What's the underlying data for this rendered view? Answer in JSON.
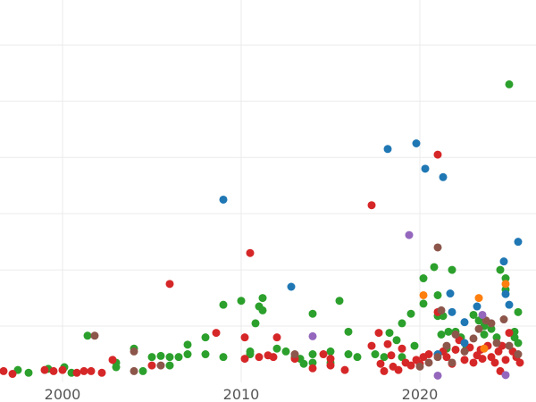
{
  "chart_data": {
    "type": "scatter",
    "title": "",
    "xlabel": "",
    "ylabel": "",
    "xlim": [
      1996.5,
      2026.5
    ],
    "ylim": [
      0,
      6.8
    ],
    "x_ticks": [
      {
        "value": 2000,
        "label": "2000"
      },
      {
        "value": 2010,
        "label": "2010"
      },
      {
        "value": 2020,
        "label": "2020"
      }
    ],
    "y_gridlines": [
      1,
      2,
      3,
      4,
      5,
      6
    ],
    "x_gridlines": [
      2000,
      2010,
      2020
    ],
    "grid": true,
    "legend": "none",
    "colors": {
      "green": "#2ca02c",
      "red": "#d62728",
      "blue": "#1f77b4",
      "brown": "#8c564b",
      "orange": "#ff7f0e",
      "purple": "#9467bd"
    },
    "series": [
      {
        "color": "#2ca02c",
        "points": [
          [
            1997.5,
            0.22
          ],
          [
            1998.1,
            0.17
          ],
          [
            1999.2,
            0.24
          ],
          [
            2000.1,
            0.27
          ],
          [
            2000.5,
            0.17
          ],
          [
            2001.4,
            0.83
          ],
          [
            2003.0,
            0.35
          ],
          [
            2003.0,
            0.27
          ],
          [
            2004.0,
            0.6
          ],
          [
            2004.5,
            0.2
          ],
          [
            2005.0,
            0.45
          ],
          [
            2005.5,
            0.47
          ],
          [
            2006.0,
            0.45
          ],
          [
            2006.0,
            0.3
          ],
          [
            2006.5,
            0.45
          ],
          [
            2007.0,
            0.5
          ],
          [
            2007.0,
            0.67
          ],
          [
            2008.0,
            0.5
          ],
          [
            2008.0,
            0.8
          ],
          [
            2009.0,
            1.38
          ],
          [
            2009.0,
            0.45
          ],
          [
            2010.0,
            1.45
          ],
          [
            2010.5,
            0.55
          ],
          [
            2010.5,
            0.5
          ],
          [
            2011.0,
            1.35
          ],
          [
            2011.2,
            1.5
          ],
          [
            2011.2,
            1.28
          ],
          [
            2010.8,
            1.05
          ],
          [
            2012.0,
            0.6
          ],
          [
            2012.5,
            0.55
          ],
          [
            2013.0,
            0.45
          ],
          [
            2013.3,
            0.42
          ],
          [
            2013.5,
            0.33
          ],
          [
            2014.0,
            0.35
          ],
          [
            2014.0,
            0.5
          ],
          [
            2014.0,
            1.22
          ],
          [
            2015.0,
            0.55
          ],
          [
            2015.0,
            0.35
          ],
          [
            2015.5,
            1.45
          ],
          [
            2016.0,
            0.5
          ],
          [
            2016.0,
            0.9
          ],
          [
            2016.5,
            0.45
          ],
          [
            2017.5,
            0.5
          ],
          [
            2018.0,
            0.45
          ],
          [
            2018.3,
            0.88
          ],
          [
            2018.7,
            0.75
          ],
          [
            2019.0,
            1.05
          ],
          [
            2019.0,
            0.45
          ],
          [
            2019.5,
            1.22
          ],
          [
            2019.7,
            0.65
          ],
          [
            2020.2,
            1.4
          ],
          [
            2020.2,
            1.85
          ],
          [
            2020.8,
            2.05
          ],
          [
            2021.0,
            1.55
          ],
          [
            2021.0,
            1.18
          ],
          [
            2021.2,
            0.85
          ],
          [
            2021.3,
            1.18
          ],
          [
            2021.5,
            0.6
          ],
          [
            2021.8,
            2.0
          ],
          [
            2022.0,
            0.9
          ],
          [
            2022.3,
            0.8
          ],
          [
            2022.6,
            0.6
          ],
          [
            2023.0,
            1.2
          ],
          [
            2023.3,
            1.1
          ],
          [
            2023.6,
            0.85
          ],
          [
            2023.6,
            1.0
          ],
          [
            2024.0,
            0.95
          ],
          [
            2024.3,
            0.8
          ],
          [
            2024.5,
            2.0
          ],
          [
            2024.8,
            1.65
          ],
          [
            2024.8,
            1.85
          ],
          [
            2025.0,
            5.3
          ],
          [
            2025.3,
            0.9
          ],
          [
            2025.5,
            1.25
          ],
          [
            2025.5,
            0.7
          ],
          [
            2025.3,
            0.8
          ],
          [
            2021.6,
            0.9
          ]
        ]
      },
      {
        "color": "#d62728",
        "points": [
          [
            1996.7,
            0.2
          ],
          [
            1997.2,
            0.15
          ],
          [
            1999.0,
            0.22
          ],
          [
            1999.5,
            0.2
          ],
          [
            2000.0,
            0.22
          ],
          [
            2000.8,
            0.17
          ],
          [
            2001.2,
            0.2
          ],
          [
            2001.6,
            0.2
          ],
          [
            2002.2,
            0.17
          ],
          [
            2002.8,
            0.4
          ],
          [
            2005.0,
            0.3
          ],
          [
            2006.0,
            1.75
          ],
          [
            2008.6,
            0.88
          ],
          [
            2010.2,
            0.8
          ],
          [
            2010.2,
            0.42
          ],
          [
            2010.5,
            2.3
          ],
          [
            2011.0,
            0.45
          ],
          [
            2011.5,
            0.48
          ],
          [
            2011.8,
            0.45
          ],
          [
            2012.0,
            0.8
          ],
          [
            2013.0,
            0.42
          ],
          [
            2014.0,
            0.25
          ],
          [
            2014.6,
            0.5
          ],
          [
            2015.0,
            0.42
          ],
          [
            2015.0,
            0.3
          ],
          [
            2015.8,
            0.22
          ],
          [
            2017.3,
            3.15
          ],
          [
            2017.3,
            0.65
          ],
          [
            2017.7,
            0.88
          ],
          [
            2017.8,
            0.33
          ],
          [
            2018.0,
            0.2
          ],
          [
            2018.2,
            0.68
          ],
          [
            2018.4,
            0.48
          ],
          [
            2018.5,
            0.28
          ],
          [
            2018.8,
            0.22
          ],
          [
            2019.0,
            0.6
          ],
          [
            2019.2,
            0.35
          ],
          [
            2019.5,
            0.3
          ],
          [
            2019.8,
            0.4
          ],
          [
            2020.0,
            0.33
          ],
          [
            2020.2,
            0.45
          ],
          [
            2020.5,
            0.5
          ],
          [
            2021.0,
            4.05
          ],
          [
            2021.0,
            1.25
          ],
          [
            2021.3,
            0.55
          ],
          [
            2021.5,
            0.45
          ],
          [
            2021.8,
            0.33
          ],
          [
            2022.0,
            0.58
          ],
          [
            2022.2,
            0.75
          ],
          [
            2022.5,
            0.4
          ],
          [
            2022.8,
            0.62
          ],
          [
            2023.0,
            0.35
          ],
          [
            2023.2,
            0.48
          ],
          [
            2023.5,
            0.42
          ],
          [
            2023.8,
            0.65
          ],
          [
            2024.0,
            0.45
          ],
          [
            2024.2,
            0.35
          ],
          [
            2024.4,
            0.55
          ],
          [
            2024.6,
            0.65
          ],
          [
            2024.8,
            0.4
          ],
          [
            2025.0,
            0.88
          ],
          [
            2025.2,
            0.55
          ],
          [
            2025.4,
            0.45
          ],
          [
            2025.6,
            0.35
          ],
          [
            2024.5,
            0.2
          ],
          [
            2023.4,
            0.58
          ]
        ]
      },
      {
        "color": "#1f77b4",
        "points": [
          [
            2009.0,
            3.25
          ],
          [
            2012.8,
            1.7
          ],
          [
            2018.2,
            4.15
          ],
          [
            2019.8,
            4.25
          ],
          [
            2020.3,
            3.8
          ],
          [
            2021.3,
            3.65
          ],
          [
            2021.7,
            1.58
          ],
          [
            2021.8,
            1.25
          ],
          [
            2022.5,
            1.07
          ],
          [
            2023.2,
            1.35
          ],
          [
            2024.8,
            1.57
          ],
          [
            2025.0,
            1.38
          ],
          [
            2024.7,
            2.15
          ],
          [
            2025.5,
            2.5
          ],
          [
            2021.0,
            0.5
          ],
          [
            2022.5,
            0.7
          ]
        ]
      },
      {
        "color": "#8c564b",
        "points": [
          [
            2001.8,
            0.83
          ],
          [
            2004.0,
            0.2
          ],
          [
            2004.0,
            0.55
          ],
          [
            2005.5,
            0.3
          ],
          [
            2013.0,
            0.5
          ],
          [
            2020.0,
            0.28
          ],
          [
            2020.5,
            0.35
          ],
          [
            2021.0,
            0.45
          ],
          [
            2021.0,
            2.4
          ],
          [
            2021.2,
            1.28
          ],
          [
            2021.5,
            0.65
          ],
          [
            2022.0,
            0.85
          ],
          [
            2022.5,
            0.55
          ],
          [
            2023.0,
            0.78
          ],
          [
            2023.3,
            0.95
          ],
          [
            2023.7,
            1.1
          ],
          [
            2024.0,
            1.05
          ],
          [
            2024.3,
            0.7
          ],
          [
            2024.7,
            1.12
          ],
          [
            2025.0,
            0.65
          ],
          [
            2025.5,
            0.5
          ],
          [
            2021.8,
            0.35
          ]
        ]
      },
      {
        "color": "#ff7f0e",
        "points": [
          [
            2020.2,
            1.55
          ],
          [
            2023.3,
            1.5
          ],
          [
            2024.8,
            1.75
          ],
          [
            2023.6,
            0.6
          ]
        ]
      },
      {
        "color": "#9467bd",
        "points": [
          [
            2014.0,
            0.82
          ],
          [
            2019.4,
            2.62
          ],
          [
            2021.0,
            0.12
          ],
          [
            2024.8,
            0.13
          ],
          [
            2023.5,
            1.2
          ]
        ]
      }
    ]
  }
}
